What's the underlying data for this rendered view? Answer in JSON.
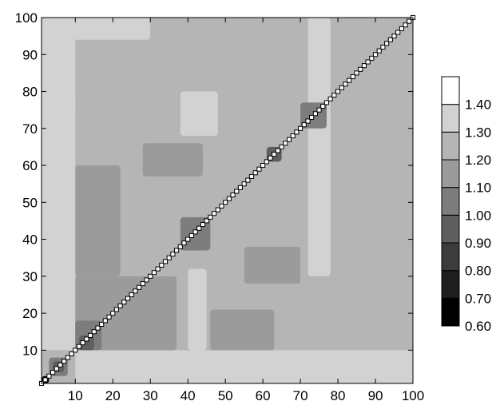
{
  "chart_data": {
    "type": "heatmap",
    "title": "",
    "xlabel": "",
    "ylabel": "",
    "xlim": [
      1,
      100
    ],
    "ylim": [
      1,
      100
    ],
    "x_ticks": [
      10,
      20,
      30,
      40,
      50,
      60,
      70,
      80,
      90,
      100
    ],
    "y_ticks": [
      10,
      20,
      30,
      40,
      50,
      60,
      70,
      80,
      90,
      100
    ],
    "colorbar": {
      "levels": [
        0.6,
        0.7,
        0.8,
        0.9,
        1.0,
        1.1,
        1.2,
        1.3,
        1.4
      ],
      "labels": [
        "0.60",
        "0.70",
        "0.80",
        "0.90",
        "1.00",
        "1.10",
        "1.20",
        "1.30",
        "1.40"
      ],
      "colors": [
        "#000000",
        "#1e1e1e",
        "#3c3c3c",
        "#5f5f5f",
        "#7d7d7d",
        "#9b9b9b",
        "#b5b5b5",
        "#d2d2d2",
        "#ffffff"
      ]
    },
    "background_level": 1.2,
    "diagonal": {
      "from": 1,
      "to": 100,
      "value": 1.4
    },
    "regions": [
      {
        "x": [
          1,
          3
        ],
        "y": [
          1,
          3
        ],
        "level": 0.6
      },
      {
        "x": [
          3,
          8
        ],
        "y": [
          3,
          8
        ],
        "level": 1.0
      },
      {
        "x": [
          4,
          7
        ],
        "y": [
          4,
          7
        ],
        "level": 0.9
      },
      {
        "x": [
          10,
          17
        ],
        "y": [
          10,
          18
        ],
        "level": 1.0
      },
      {
        "x": [
          11,
          15
        ],
        "y": [
          10,
          14
        ],
        "level": 0.9
      },
      {
        "x": [
          38,
          46
        ],
        "y": [
          37,
          46
        ],
        "level": 1.0
      },
      {
        "x": [
          61,
          65
        ],
        "y": [
          61,
          65
        ],
        "level": 0.9
      },
      {
        "x": [
          70,
          77
        ],
        "y": [
          70,
          77
        ],
        "level": 1.0
      },
      {
        "x": [
          10,
          37
        ],
        "y": [
          10,
          30
        ],
        "level": 1.1
      },
      {
        "x": [
          10,
          22
        ],
        "y": [
          30,
          60
        ],
        "level": 1.1
      },
      {
        "x": [
          46,
          63
        ],
        "y": [
          10,
          21
        ],
        "level": 1.1
      },
      {
        "x": [
          55,
          70
        ],
        "y": [
          28,
          38
        ],
        "level": 1.1
      },
      {
        "x": [
          28,
          44
        ],
        "y": [
          57,
          66
        ],
        "level": 1.1
      },
      {
        "x": [
          1,
          10
        ],
        "y": [
          10,
          100
        ],
        "level": 1.3
      },
      {
        "x": [
          10,
          100
        ],
        "y": [
          1,
          10
        ],
        "level": 1.3
      },
      {
        "x": [
          38,
          48
        ],
        "y": [
          68,
          80
        ],
        "level": 1.3
      },
      {
        "x": [
          72,
          78
        ],
        "y": [
          30,
          100
        ],
        "level": 1.3
      },
      {
        "x": [
          1,
          10
        ],
        "y": [
          72,
          80
        ],
        "level": 1.3
      },
      {
        "x": [
          8,
          30
        ],
        "y": [
          94,
          100
        ],
        "level": 1.3
      },
      {
        "x": [
          40,
          45
        ],
        "y": [
          10,
          32
        ],
        "level": 1.3
      }
    ]
  }
}
